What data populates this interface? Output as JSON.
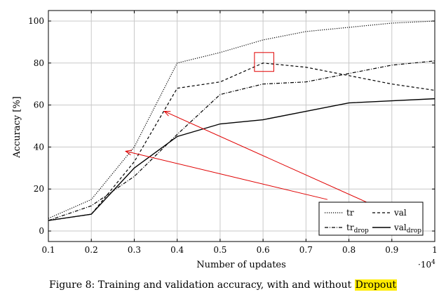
{
  "chart_data": {
    "type": "line",
    "x": [
      0.1,
      0.2,
      0.3,
      0.4,
      0.5,
      0.6,
      0.7,
      0.8,
      0.9,
      1.0
    ],
    "xlim": [
      0.1,
      1.0
    ],
    "ylim": [
      -5,
      105
    ],
    "xticks": [
      "0.1",
      "0.2",
      "0.3",
      "0.4",
      "0.5",
      "0.6",
      "0.7",
      "0.8",
      "0.9",
      "1"
    ],
    "yticks": [
      "0",
      "20",
      "40",
      "60",
      "80",
      "100"
    ],
    "ytick_values": [
      0,
      20,
      40,
      60,
      80,
      100
    ],
    "xlabel": "Number of updates",
    "ylabel": "Accuracy [%]",
    "x_multiplier": {
      "base": "·10",
      "exp": "4"
    },
    "grid": true,
    "legend_position": "bottom-right",
    "series": [
      {
        "name": "tr",
        "sub": "",
        "style": "dotted",
        "values": [
          6,
          15,
          40,
          80,
          85,
          91,
          95,
          97,
          99,
          100
        ]
      },
      {
        "name": "val",
        "sub": "",
        "style": "dashed",
        "values": [
          5,
          8,
          33,
          68,
          71,
          80,
          78,
          74,
          70,
          67
        ]
      },
      {
        "name": "tr",
        "sub": "drop",
        "style": "dashdot",
        "values": [
          5,
          12,
          26,
          46,
          65,
          70,
          71,
          75,
          79,
          81
        ]
      },
      {
        "name": "val",
        "sub": "drop",
        "style": "solid",
        "values": [
          5,
          8,
          30,
          45,
          51,
          53,
          57,
          61,
          62,
          63
        ]
      }
    ],
    "annotations": {
      "box": {
        "x": [
          0.58,
          0.625
        ],
        "y": [
          76,
          85
        ],
        "color": "#e00000"
      },
      "arrows": [
        {
          "from": [
            0.86,
            12
          ],
          "to": [
            0.37,
            57
          ],
          "color": "#e00000"
        },
        {
          "from": [
            0.75,
            15
          ],
          "to": [
            0.28,
            38
          ],
          "color": "#e00000"
        }
      ]
    }
  },
  "caption": {
    "prefix": "Figure 8: Training and validation accuracy, with and without ",
    "highlight": "Dropout",
    "highlight_color": "#ffeb00"
  }
}
